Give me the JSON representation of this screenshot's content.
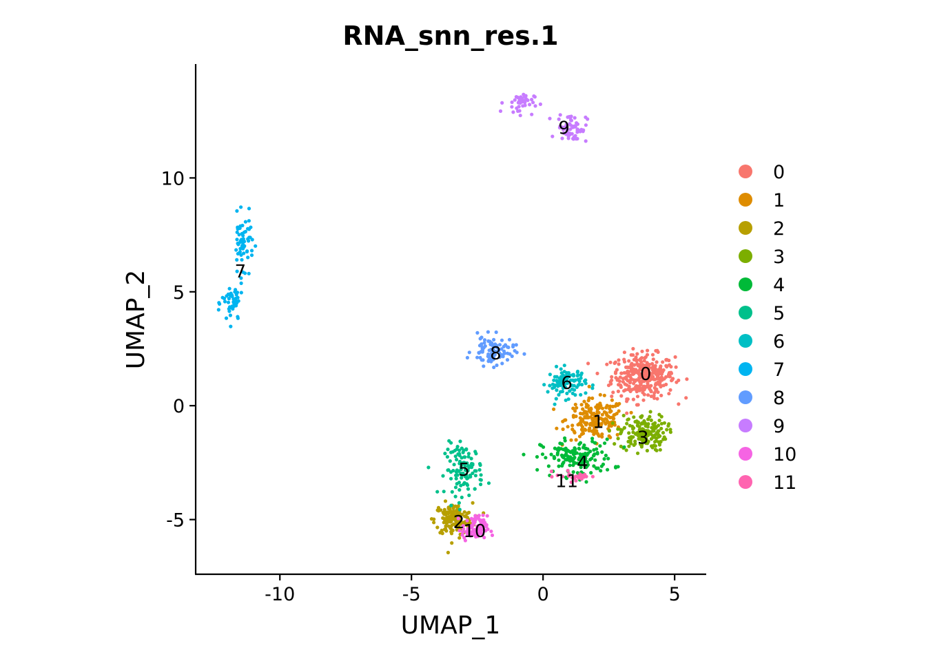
{
  "chart_data": {
    "type": "scatter",
    "title": "RNA_snn_res.1",
    "xlabel": "UMAP_1",
    "ylabel": "UMAP_2",
    "xlim": [
      -13.2,
      6.2
    ],
    "ylim": [
      -7.4,
      15
    ],
    "xticks": [
      -10,
      -5,
      0,
      5
    ],
    "xtick_labels": [
      "-10",
      "-5",
      "0",
      "5"
    ],
    "yticks": [
      -5,
      0,
      5,
      10
    ],
    "ytick_labels": [
      "-5",
      "0",
      "5",
      "10"
    ],
    "grid": false,
    "legend_position": "right",
    "series": [
      {
        "name": "0",
        "color": "#F8766D",
        "label_pos": [
          3.9,
          1.4
        ],
        "clusters": [
          {
            "center": [
              3.8,
              1.3
            ],
            "spread": [
              0.75,
              0.6
            ],
            "n": 330
          }
        ]
      },
      {
        "name": "1",
        "color": "#DE8C00",
        "label_pos": [
          2.1,
          -0.7
        ],
        "clusters": [
          {
            "center": [
              2.0,
              -0.6
            ],
            "spread": [
              0.7,
              0.55
            ],
            "n": 190
          }
        ]
      },
      {
        "name": "2",
        "color": "#B79F00",
        "label_pos": [
          -3.2,
          -5.1
        ],
        "clusters": [
          {
            "center": [
              -3.4,
              -5.0
            ],
            "spread": [
              0.45,
              0.45
            ],
            "n": 150
          }
        ]
      },
      {
        "name": "3",
        "color": "#7CAE00",
        "label_pos": [
          3.8,
          -1.4
        ],
        "clusters": [
          {
            "center": [
              3.8,
              -1.2
            ],
            "spread": [
              0.55,
              0.5
            ],
            "n": 170
          }
        ]
      },
      {
        "name": "4",
        "color": "#00BA38",
        "label_pos": [
          1.5,
          -2.5
        ],
        "clusters": [
          {
            "center": [
              1.3,
              -2.3
            ],
            "spread": [
              0.85,
              0.5
            ],
            "n": 160
          }
        ]
      },
      {
        "name": "5",
        "color": "#00C08B",
        "label_pos": [
          -3.0,
          -2.8
        ],
        "clusters": [
          {
            "center": [
              -3.0,
              -2.8
            ],
            "spread": [
              0.45,
              0.7
            ],
            "n": 110
          }
        ]
      },
      {
        "name": "6",
        "color": "#00BFC4",
        "label_pos": [
          0.9,
          1.0
        ],
        "clusters": [
          {
            "center": [
              0.9,
              1.0
            ],
            "spread": [
              0.45,
              0.4
            ],
            "n": 100
          }
        ]
      },
      {
        "name": "7",
        "color": "#00B4F0",
        "label_pos": [
          -11.5,
          5.9
        ],
        "clusters": [
          {
            "center": [
              -11.4,
              7.2
            ],
            "spread": [
              0.25,
              0.7
            ],
            "n": 60
          },
          {
            "center": [
              -11.8,
              4.5
            ],
            "spread": [
              0.25,
              0.6
            ],
            "n": 50
          }
        ]
      },
      {
        "name": "8",
        "color": "#619CFF",
        "label_pos": [
          -1.8,
          2.3
        ],
        "clusters": [
          {
            "center": [
              -1.9,
              2.4
            ],
            "spread": [
              0.5,
              0.4
            ],
            "n": 90
          }
        ]
      },
      {
        "name": "9",
        "color": "#C77CFF",
        "label_pos": [
          0.8,
          12.2
        ],
        "clusters": [
          {
            "center": [
              1.1,
              12.2
            ],
            "spread": [
              0.35,
              0.4
            ],
            "n": 60
          },
          {
            "center": [
              -0.9,
              13.3
            ],
            "spread": [
              0.35,
              0.3
            ],
            "n": 40
          }
        ]
      },
      {
        "name": "10",
        "color": "#F564E3",
        "label_pos": [
          -2.6,
          -5.5
        ],
        "clusters": [
          {
            "center": [
              -2.6,
              -5.4
            ],
            "spread": [
              0.3,
              0.35
            ],
            "n": 90
          }
        ]
      },
      {
        "name": "11",
        "color": "#FF64B0",
        "label_pos": [
          0.9,
          -3.3
        ],
        "clusters": [
          {
            "center": [
              1.3,
              -3.1
            ],
            "spread": [
              0.5,
              0.15
            ],
            "n": 25
          }
        ]
      }
    ]
  }
}
